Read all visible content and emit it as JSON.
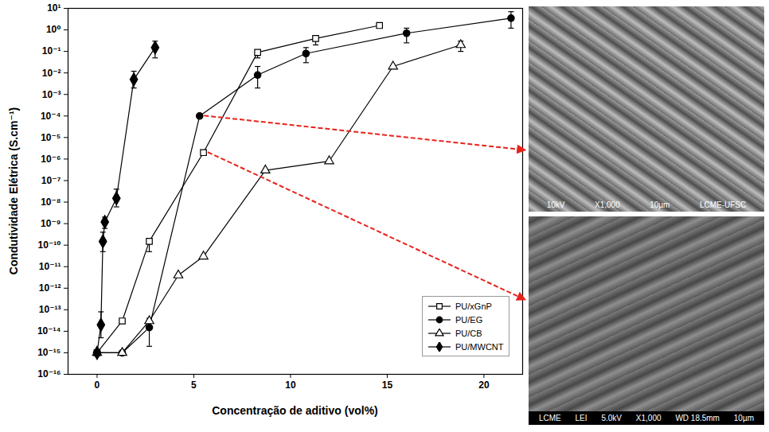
{
  "chart_data": {
    "type": "line",
    "x_label": "Concentração de aditivo (vol%)",
    "y_label": "Condutividade Elétrica (S.cm⁻¹)",
    "log": "y",
    "xlim": [
      -1.5,
      22
    ],
    "ylim": [
      1e-16,
      10
    ],
    "xticks": [
      0,
      5,
      10,
      15,
      20
    ],
    "yticks": [
      {
        "value": 1e-16,
        "label": "10⁻¹⁶"
      },
      {
        "value": 1e-15,
        "label": "10⁻¹⁵"
      },
      {
        "value": 1e-14,
        "label": "10⁻¹⁴"
      },
      {
        "value": 1e-13,
        "label": "10⁻¹³"
      },
      {
        "value": 1e-12,
        "label": "10⁻¹²"
      },
      {
        "value": 1e-11,
        "label": "10⁻¹¹"
      },
      {
        "value": 1e-10,
        "label": "10⁻¹⁰"
      },
      {
        "value": 1e-09,
        "label": "10⁻⁹"
      },
      {
        "value": 1e-08,
        "label": "10⁻⁸"
      },
      {
        "value": 1e-07,
        "label": "10⁻⁷"
      },
      {
        "value": 1e-06,
        "label": "10⁻⁶"
      },
      {
        "value": 1e-05,
        "label": "10⁻⁵"
      },
      {
        "value": 0.0001,
        "label": "10⁻⁴"
      },
      {
        "value": 0.001,
        "label": "10⁻³"
      },
      {
        "value": 0.01,
        "label": "10⁻²"
      },
      {
        "value": 0.1,
        "label": "10⁻¹"
      },
      {
        "value": 1,
        "label": "10⁰"
      },
      {
        "value": 10,
        "label": "10¹"
      }
    ],
    "legend": "lower right",
    "series": [
      {
        "name": "PU/xGnP",
        "color": "#000000",
        "marker": "square-open",
        "line_style": "solid",
        "x": [
          0,
          1.3,
          2.7,
          5.5,
          8.3,
          11.3,
          14.6
        ],
        "values": [
          1e-15,
          3e-14,
          1.5e-10,
          2e-06,
          0.09,
          0.4,
          1.6
        ],
        "error_low": [
          null,
          null,
          5e-11,
          null,
          0.05,
          0.2,
          null
        ],
        "error_high": [
          null,
          null,
          null,
          null,
          null,
          null,
          null
        ]
      },
      {
        "name": "PU/EG",
        "color": "#000000",
        "marker": "circle",
        "line_style": "solid",
        "x": [
          0,
          1.3,
          2.7,
          5.3,
          8.3,
          10.8,
          16,
          21.4
        ],
        "values": [
          1e-15,
          1e-15,
          1.5e-14,
          0.0001,
          0.008,
          0.08,
          0.7,
          3.5
        ],
        "error_low": [
          null,
          null,
          2e-15,
          null,
          0.002,
          0.03,
          0.25,
          1.2
        ],
        "error_high": [
          null,
          null,
          4e-14,
          null,
          0.02,
          0.15,
          1.2,
          7
        ]
      },
      {
        "name": "PU/CB",
        "color": "#000000",
        "marker": "triangle-open",
        "line_style": "solid",
        "x": [
          0,
          1.3,
          2.7,
          4.2,
          5.5,
          8.7,
          12,
          15.3,
          18.8
        ],
        "values": [
          1e-15,
          1e-15,
          3e-14,
          4e-12,
          3e-11,
          3e-07,
          8e-07,
          0.02,
          0.2
        ],
        "error_low": [
          null,
          null,
          null,
          null,
          null,
          null,
          null,
          null,
          0.1
        ],
        "error_high": [
          null,
          null,
          null,
          null,
          null,
          null,
          null,
          null,
          0.3
        ]
      },
      {
        "name": "PU/MWCNT",
        "color": "#000000",
        "marker": "diamond",
        "line_style": "solid",
        "x": [
          0,
          0.2,
          0.3,
          0.4,
          1.0,
          1.9,
          3.0
        ],
        "values": [
          1e-15,
          2e-14,
          1.5e-10,
          1.2e-09,
          1.5e-08,
          0.005,
          0.15
        ],
        "error_low": [
          null,
          5e-15,
          5e-11,
          6e-10,
          6e-09,
          0.002,
          0.05
        ],
        "error_high": [
          null,
          8e-14,
          4e-10,
          2e-09,
          4e-08,
          0.012,
          0.3
        ]
      }
    ]
  },
  "images": [
    {
      "caption": [
        "10kV",
        "X1,000",
        "10µm",
        "LCME-UFSC"
      ]
    },
    {
      "caption": [
        "LCME",
        "LEI",
        "5.0kV",
        "X1,000",
        "WD 18.5mm",
        "10µm"
      ]
    }
  ]
}
